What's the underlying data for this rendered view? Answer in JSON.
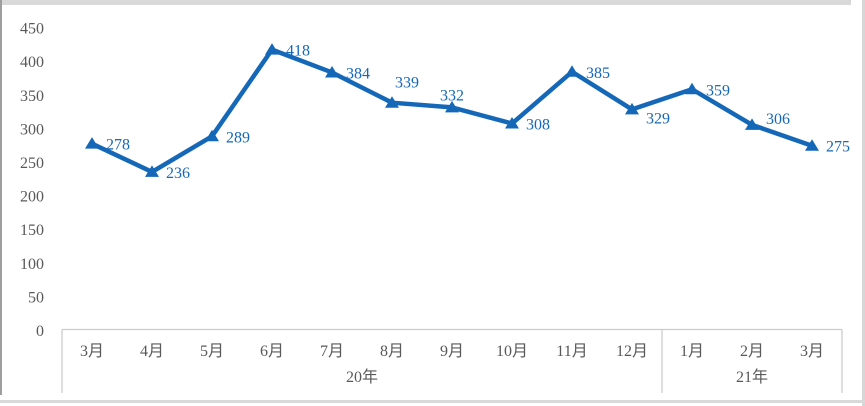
{
  "chart_data": {
    "type": "line",
    "title": "",
    "categories": [
      "3月",
      "4月",
      "5月",
      "6月",
      "7月",
      "8月",
      "9月",
      "10月",
      "11月",
      "12月",
      "1月",
      "2月",
      "3月"
    ],
    "category_groups": [
      {
        "label": "20年",
        "span": 10
      },
      {
        "label": "21年",
        "span": 3
      }
    ],
    "series": [
      {
        "name": "",
        "values": [
          278,
          236,
          289,
          418,
          384,
          339,
          332,
          308,
          385,
          329,
          359,
          306,
          275
        ]
      }
    ],
    "data_labels": [
      "278",
      "236",
      "289",
      "418",
      "384",
      "339",
      "332",
      "308",
      "385",
      "329",
      "359",
      "306",
      "275"
    ],
    "yticks": [
      0,
      50,
      100,
      150,
      200,
      250,
      300,
      350,
      400,
      450
    ],
    "ytick_labels": [
      "0",
      "50",
      "100",
      "150",
      "200",
      "250",
      "300",
      "350",
      "400",
      "450"
    ],
    "ylim": [
      0,
      450
    ],
    "xlabel": "",
    "ylabel": "",
    "grid": false,
    "legend": "none",
    "marker": "triangle",
    "colors": {
      "series": "#1568B8",
      "data_label": "#1568B8",
      "axis_text": "#595959",
      "axis_line": "#cccccc",
      "frame": "#d9d9d9"
    }
  }
}
